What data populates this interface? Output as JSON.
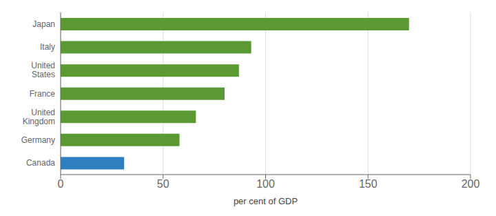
{
  "chart_data": {
    "type": "bar",
    "orientation": "horizontal",
    "categories": [
      "Canada",
      "Germany",
      "United\nKingdom",
      "France",
      "United\nStates",
      "Italy",
      "Japan"
    ],
    "values": [
      31,
      58,
      66,
      80,
      87,
      93,
      170
    ],
    "colors": [
      "#2e7fbf",
      "#5b9a32",
      "#5b9a32",
      "#5b9a32",
      "#5b9a32",
      "#5b9a32",
      "#5b9a32"
    ],
    "xlabel": "per cent of GDP",
    "xlim": [
      0,
      200
    ],
    "xticks": [
      0,
      50,
      100,
      150,
      200
    ],
    "grid": true
  }
}
